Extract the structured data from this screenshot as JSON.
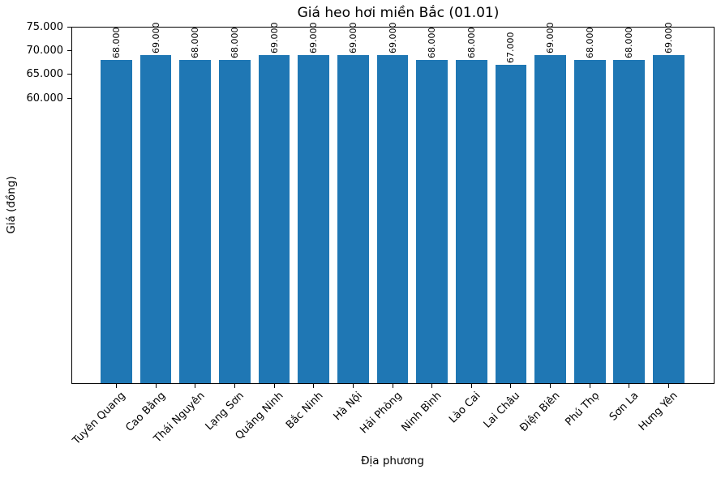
{
  "chart_data": {
    "type": "bar",
    "title": "Giá heo hơi miền Bắc (01.01)",
    "xlabel": "Địa phương",
    "ylabel": "Giá (đồng)",
    "categories": [
      "Tuyên Quang",
      "Cao Bằng",
      "Thái Nguyên",
      "Lạng Sơn",
      "Quảng Ninh",
      "Bắc Ninh",
      "Hà Nội",
      "Hải Phòng",
      "Ninh Bình",
      "Lào Cai",
      "Lai Châu",
      "Điện Biên",
      "Phú Thọ",
      "Sơn La",
      "Hưng Yên"
    ],
    "values": [
      68000,
      69000,
      68000,
      68000,
      69000,
      69000,
      69000,
      69000,
      68000,
      68000,
      67000,
      69000,
      68000,
      68000,
      69000
    ],
    "value_labels": [
      "68.000",
      "69.000",
      "68.000",
      "68.000",
      "69.000",
      "69.000",
      "69.000",
      "69.000",
      "68.000",
      "68.000",
      "67.000",
      "69.000",
      "68.000",
      "68.000",
      "69.000"
    ],
    "ylim": [
      0,
      75000
    ],
    "yticks": {
      "values": [
        60000,
        65000,
        70000,
        75000
      ],
      "labels": [
        "60.000",
        "65.000",
        "70.000",
        "75.000"
      ]
    },
    "bar_color": "#1f77b4",
    "text_color": "#000000",
    "background_color": "#ffffff",
    "grid": false,
    "legend_position": "none",
    "x_tick_rotation": 45,
    "value_label_rotation": 90
  }
}
